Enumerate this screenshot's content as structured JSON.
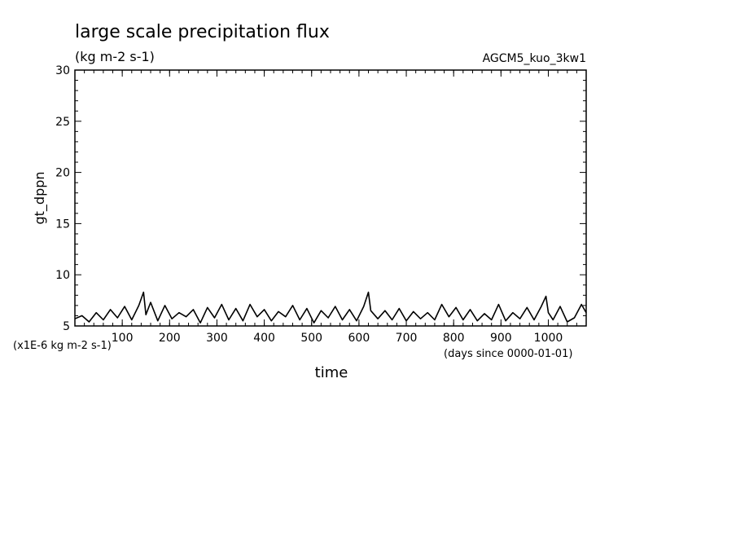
{
  "chart_data": {
    "type": "line",
    "title": "large scale precipitation flux",
    "units": "(kg m-2 s-1)",
    "run_label": "AGCM5_kuo_3kw1",
    "ylabel": "gt_dppn",
    "xlabel": "time",
    "y_scale_note": "(x1E-6 kg m-2 s-1)",
    "x_unit_note": "(days since 0000-01-01)",
    "xlim": [
      0,
      1080
    ],
    "ylim": [
      5,
      30
    ],
    "x_ticks": [
      100,
      200,
      300,
      400,
      500,
      600,
      700,
      800,
      900,
      1000
    ],
    "y_ticks": [
      5,
      10,
      15,
      20,
      25,
      30
    ],
    "grid": false,
    "colors": {
      "line": "#000000",
      "axes": "#000000",
      "background": "#ffffff"
    },
    "series": [
      {
        "x": [
          0,
          15,
          30,
          45,
          60,
          75,
          90,
          105,
          120,
          135,
          145,
          150,
          160,
          175,
          190,
          205,
          220,
          235,
          250,
          265,
          280,
          295,
          310,
          325,
          340,
          355,
          370,
          385,
          400,
          415,
          430,
          445,
          460,
          475,
          490,
          505,
          520,
          535,
          550,
          565,
          580,
          595,
          610,
          620,
          625,
          640,
          655,
          670,
          685,
          700,
          715,
          730,
          745,
          760,
          775,
          790,
          805,
          820,
          835,
          850,
          865,
          880,
          895,
          910,
          925,
          940,
          955,
          970,
          985,
          995,
          1000,
          1010,
          1025,
          1040,
          1055,
          1070,
          1080
        ],
        "values": [
          5.7,
          6.0,
          5.4,
          6.3,
          5.6,
          6.6,
          5.8,
          6.9,
          5.6,
          7.0,
          8.3,
          6.1,
          7.3,
          5.5,
          7.0,
          5.7,
          6.3,
          5.9,
          6.6,
          5.3,
          6.8,
          5.8,
          7.1,
          5.6,
          6.7,
          5.5,
          7.1,
          5.9,
          6.6,
          5.5,
          6.4,
          5.9,
          7.0,
          5.6,
          6.7,
          5.3,
          6.5,
          5.8,
          6.9,
          5.6,
          6.6,
          5.5,
          6.9,
          8.3,
          6.5,
          5.7,
          6.5,
          5.6,
          6.7,
          5.5,
          6.4,
          5.7,
          6.3,
          5.6,
          7.1,
          5.9,
          6.8,
          5.6,
          6.6,
          5.5,
          6.2,
          5.6,
          7.1,
          5.5,
          6.3,
          5.7,
          6.8,
          5.6,
          6.9,
          7.9,
          6.3,
          5.6,
          6.9,
          5.4,
          5.8,
          7.1,
          6.3
        ]
      }
    ]
  }
}
